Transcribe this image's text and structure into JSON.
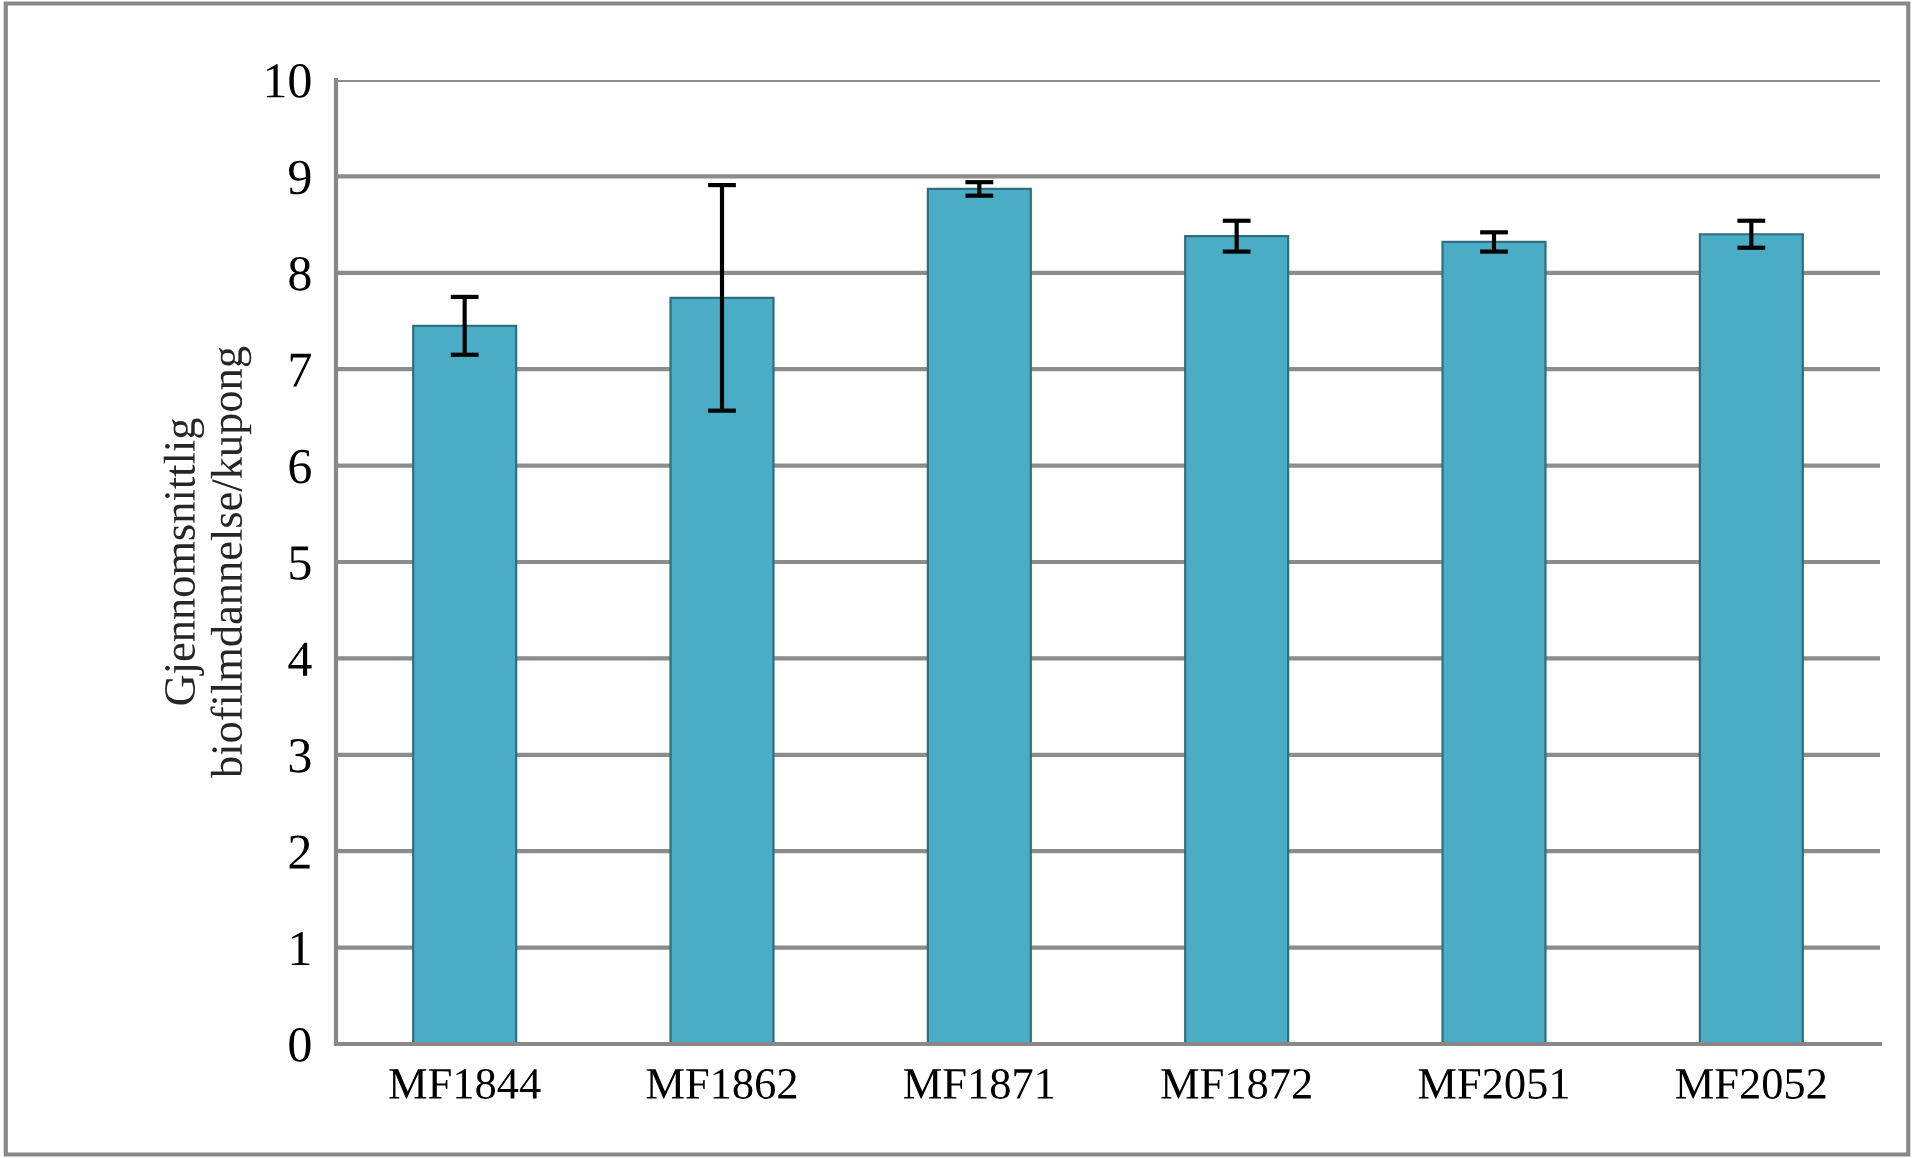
{
  "chart_data": {
    "type": "bar",
    "ylabel": "Gjennomsnittlig\nbiofilmdannelse/kupong",
    "categories": [
      "MF1844",
      "MF1862",
      "MF1871",
      "MF1872",
      "MF2051",
      "MF2052"
    ],
    "values": [
      7.45,
      7.74,
      8.87,
      8.38,
      8.32,
      8.4
    ],
    "errors": [
      0.3,
      1.17,
      0.07,
      0.16,
      0.1,
      0.14
    ],
    "color": "#4bacc6",
    "ylim": [
      0,
      10
    ],
    "yticks": [
      0,
      1,
      2,
      3,
      4,
      5,
      6,
      7,
      8,
      9,
      10
    ],
    "grid": "y"
  }
}
